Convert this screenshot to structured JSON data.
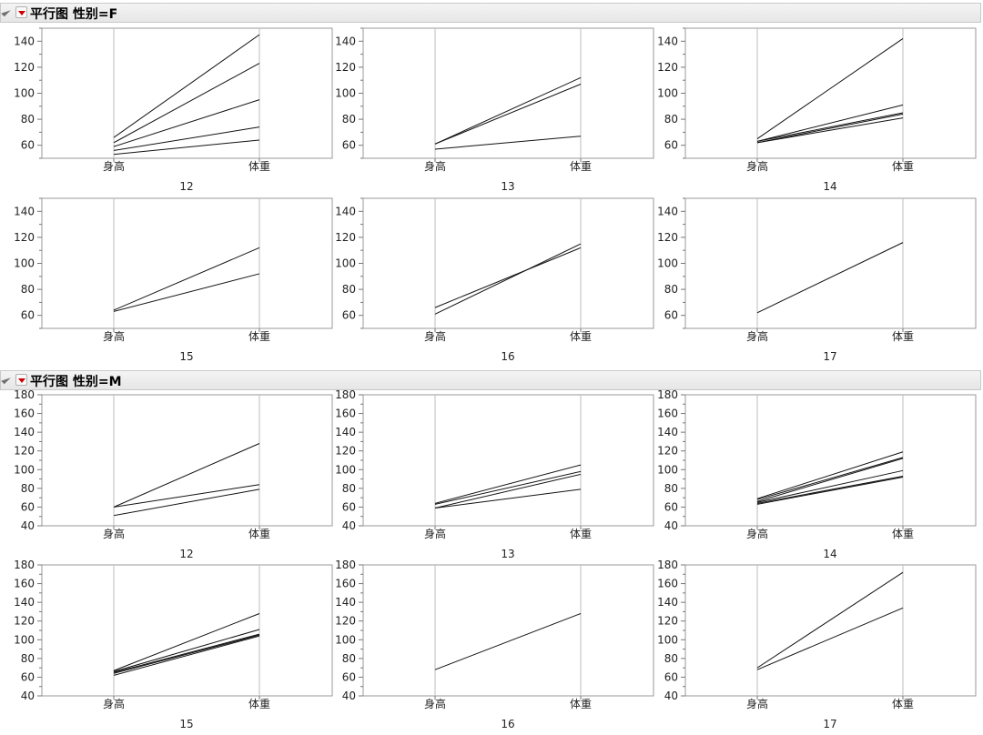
{
  "sections": [
    {
      "title": "平行图 性别=F",
      "chart_data": {
        "type": "line",
        "categories": [
          "身高",
          "体重"
        ],
        "ylim": [
          50,
          150
        ],
        "yticks": [
          60,
          80,
          100,
          120,
          140
        ],
        "panels": [
          {
            "label": "12",
            "lines": [
              [
                66,
                145
              ],
              [
                62,
                123
              ],
              [
                59,
                95
              ],
              [
                56,
                74
              ],
              [
                53,
                64
              ]
            ]
          },
          {
            "label": "13",
            "lines": [
              [
                61,
                112
              ],
              [
                61,
                107
              ],
              [
                57,
                67
              ]
            ]
          },
          {
            "label": "14",
            "lines": [
              [
                65,
                142
              ],
              [
                63,
                91
              ],
              [
                63,
                85
              ],
              [
                62,
                84
              ],
              [
                62,
                81
              ]
            ]
          },
          {
            "label": "15",
            "lines": [
              [
                64,
                112
              ],
              [
                63,
                92
              ]
            ]
          },
          {
            "label": "16",
            "lines": [
              [
                66,
                112
              ],
              [
                61,
                115
              ]
            ]
          },
          {
            "label": "17",
            "lines": [
              [
                62,
                116
              ]
            ]
          }
        ]
      }
    },
    {
      "title": "平行图 性别=M",
      "chart_data": {
        "type": "line",
        "categories": [
          "身高",
          "体重"
        ],
        "ylim": [
          40,
          180
        ],
        "yticks": [
          40,
          60,
          80,
          100,
          120,
          140,
          160,
          180
        ],
        "panels": [
          {
            "label": "12",
            "lines": [
              [
                60,
                128
              ],
              [
                60,
                84
              ],
              [
                51,
                79
              ]
            ]
          },
          {
            "label": "13",
            "lines": [
              [
                64,
                105
              ],
              [
                63,
                98
              ],
              [
                59,
                95
              ],
              [
                59,
                79
              ]
            ]
          },
          {
            "label": "14",
            "lines": [
              [
                69,
                119
              ],
              [
                68,
                113
              ],
              [
                66,
                112
              ],
              [
                65,
                99
              ],
              [
                64,
                93
              ],
              [
                63,
                92
              ]
            ]
          },
          {
            "label": "15",
            "lines": [
              [
                67,
                128
              ],
              [
                66,
                111
              ],
              [
                65,
                106
              ],
              [
                64,
                105
              ],
              [
                62,
                104
              ]
            ]
          },
          {
            "label": "16",
            "lines": [
              [
                68,
                128
              ]
            ]
          },
          {
            "label": "17",
            "lines": [
              [
                70,
                172
              ],
              [
                68,
                134
              ]
            ]
          }
        ]
      }
    }
  ]
}
